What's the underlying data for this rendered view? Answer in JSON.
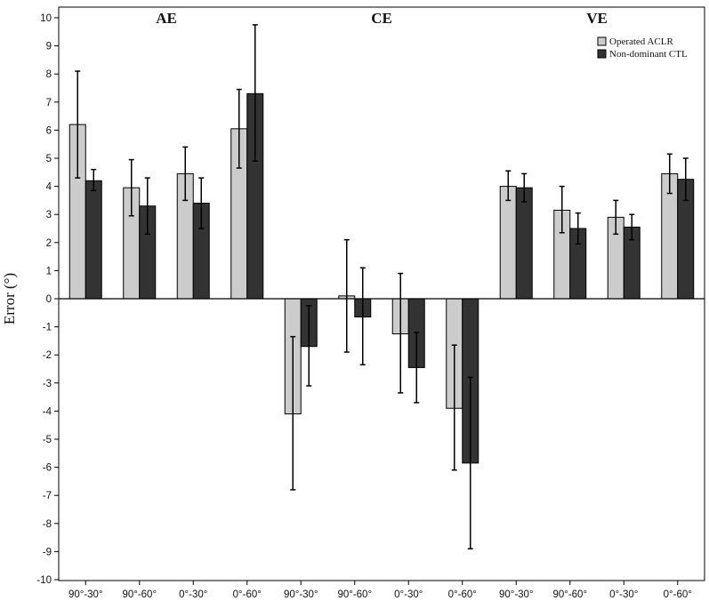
{
  "chart_data": {
    "type": "bar",
    "ylabel": "Error (°)",
    "ylim": [
      -10,
      10
    ],
    "yticks": [
      "10",
      "9",
      "8",
      "7",
      "6",
      "5",
      "4",
      "3",
      "2",
      "1",
      "0",
      "-1",
      "-2",
      "-3",
      "-4",
      "-5",
      "-6",
      "-7",
      "-8",
      "-9",
      "-10"
    ],
    "groups": [
      "AE",
      "CE",
      "VE"
    ],
    "categories": [
      "90°-30°",
      "90°-60°",
      "0°-30°",
      "0°-60°",
      "90°-30°",
      "90°-60°",
      "0°-30°",
      "0°-60°",
      "90°-30°",
      "90°-60°",
      "0°-30°",
      "0°-60°"
    ],
    "series": [
      {
        "name": "Operated ACLR",
        "color": "#cccccc",
        "values": [
          6.2,
          3.95,
          4.45,
          6.05,
          -4.1,
          0.1,
          -1.25,
          -3.9,
          4.0,
          3.15,
          2.9,
          4.45
        ],
        "err_low": [
          4.3,
          2.95,
          3.5,
          4.65,
          -6.8,
          -1.9,
          -3.35,
          -6.1,
          3.5,
          2.35,
          2.3,
          3.75
        ],
        "err_high": [
          8.1,
          4.95,
          5.4,
          7.45,
          -1.35,
          2.1,
          0.9,
          -1.65,
          4.55,
          4.0,
          3.5,
          5.15
        ]
      },
      {
        "name": "Non-dominant CTL",
        "color": "#333333",
        "values": [
          4.2,
          3.3,
          3.4,
          7.3,
          -1.7,
          -0.65,
          -2.45,
          -5.85,
          3.95,
          2.5,
          2.55,
          4.25
        ],
        "err_low": [
          3.85,
          2.3,
          2.5,
          4.9,
          -3.1,
          -2.35,
          -3.7,
          -8.9,
          3.45,
          1.95,
          2.1,
          3.5
        ],
        "err_high": [
          4.6,
          4.3,
          4.3,
          9.75,
          -0.25,
          1.1,
          -1.2,
          -2.8,
          4.45,
          3.05,
          3.0,
          5.0
        ]
      }
    ],
    "legend": {
      "position": "top-right"
    },
    "grid": false,
    "zero_line": true
  }
}
